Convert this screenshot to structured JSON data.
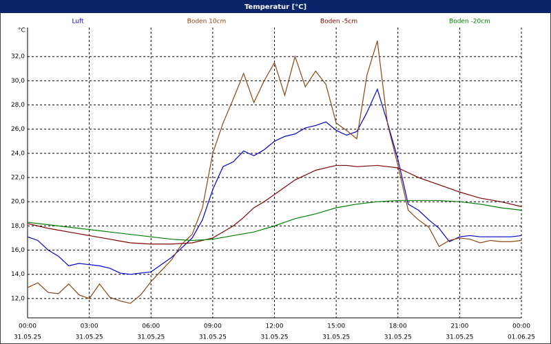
{
  "chart_data": {
    "type": "line",
    "title": "Temperatur [°C]",
    "y_unit": "°C",
    "x": [
      0,
      0.5,
      1,
      1.5,
      2,
      2.5,
      3,
      3.5,
      4,
      4.5,
      5,
      5.5,
      6,
      6.5,
      7,
      7.5,
      8,
      8.5,
      9,
      9.5,
      10,
      10.5,
      11,
      11.5,
      12,
      12.5,
      13,
      13.5,
      14,
      14.5,
      15,
      15.5,
      16,
      16.5,
      17,
      17.5,
      18,
      18.5,
      19,
      19.5,
      20,
      20.5,
      21,
      21.5,
      22,
      22.5,
      23,
      23.5,
      24
    ],
    "series": [
      {
        "name": "Luft",
        "color": "#0000cc",
        "values": [
          17.1,
          16.8,
          16.0,
          15.5,
          14.7,
          14.9,
          14.8,
          14.7,
          14.5,
          14.1,
          14.0,
          14.1,
          14.2,
          14.8,
          15.4,
          16.2,
          17.0,
          18.5,
          21.0,
          22.9,
          23.3,
          24.2,
          23.8,
          24.3,
          25.0,
          25.4,
          25.6,
          26.1,
          26.3,
          26.6,
          25.9,
          25.5,
          25.8,
          27.4,
          29.3,
          26.5,
          23.5,
          19.8,
          19.3,
          18.5,
          17.8,
          16.7,
          17.1,
          17.2,
          17.1,
          17.1,
          17.1,
          17.1,
          17.2
        ]
      },
      {
        "name": "Boden 10cm",
        "color": "#8b4513",
        "values": [
          12.9,
          13.3,
          12.5,
          12.4,
          13.2,
          12.3,
          12.0,
          13.2,
          12.1,
          11.8,
          11.6,
          12.3,
          13.4,
          14.3,
          15.2,
          16.5,
          17.3,
          19.5,
          24.0,
          26.5,
          28.5,
          30.6,
          28.2,
          30.0,
          31.5,
          28.8,
          32.0,
          29.5,
          30.8,
          29.7,
          26.5,
          25.9,
          25.2,
          30.5,
          33.3,
          26.4,
          23.0,
          19.3,
          18.5,
          17.9,
          16.3,
          16.8,
          17.0,
          16.9,
          16.6,
          16.8,
          16.7,
          16.7,
          16.8
        ]
      },
      {
        "name": "Boden -5cm",
        "color": "#800000",
        "values": [
          18.2,
          18.0,
          17.8,
          17.65,
          17.5,
          17.35,
          17.2,
          17.05,
          16.9,
          16.75,
          16.6,
          16.55,
          16.5,
          16.5,
          16.5,
          16.55,
          16.6,
          16.8,
          17.0,
          17.5,
          18.0,
          18.7,
          19.5,
          20.0,
          20.6,
          21.2,
          21.8,
          22.2,
          22.6,
          22.8,
          23.0,
          23.0,
          22.9,
          22.95,
          23.0,
          22.9,
          22.8,
          22.4,
          22.0,
          21.7,
          21.4,
          21.1,
          20.8,
          20.55,
          20.3,
          20.15,
          20.0,
          19.8,
          19.6
        ]
      },
      {
        "name": "Boden -20cm",
        "color": "#008000",
        "values": [
          18.3,
          18.2,
          18.1,
          18.0,
          17.9,
          17.8,
          17.7,
          17.6,
          17.5,
          17.4,
          17.3,
          17.2,
          17.1,
          17.0,
          16.9,
          16.85,
          16.8,
          16.85,
          16.9,
          17.05,
          17.2,
          17.35,
          17.5,
          17.75,
          18.0,
          18.3,
          18.6,
          18.8,
          19.0,
          19.25,
          19.5,
          19.65,
          19.8,
          19.9,
          20.0,
          20.05,
          20.1,
          20.1,
          20.1,
          20.1,
          20.1,
          20.05,
          20.0,
          19.9,
          19.8,
          19.65,
          19.5,
          19.4,
          19.3
        ]
      }
    ],
    "xlim": [
      0,
      24
    ],
    "xticks": [
      {
        "value": 0,
        "label": "00:00"
      },
      {
        "value": 3,
        "label": "03:00"
      },
      {
        "value": 6,
        "label": "06:00"
      },
      {
        "value": 9,
        "label": "09:00"
      },
      {
        "value": 12,
        "label": "12:00"
      },
      {
        "value": 15,
        "label": "15:00"
      },
      {
        "value": 18,
        "label": "18:00"
      },
      {
        "value": 21,
        "label": "21:00"
      },
      {
        "value": 24,
        "label": "00:00"
      }
    ],
    "xtick_dates": [
      "31.05.25",
      "31.05.25",
      "31.05.25",
      "31.05.25",
      "31.05.25",
      "31.05.25",
      "31.05.25",
      "31.05.25",
      "01.06.25"
    ],
    "ylim": [
      10.4,
      34.4
    ],
    "yticks": [
      {
        "value": 12,
        "label": "12,0"
      },
      {
        "value": 14,
        "label": "14,0"
      },
      {
        "value": 16,
        "label": "16,0"
      },
      {
        "value": 18,
        "label": "18,0"
      },
      {
        "value": 20,
        "label": "20,0"
      },
      {
        "value": 22,
        "label": "22,0"
      },
      {
        "value": 24,
        "label": "24,0"
      },
      {
        "value": 26,
        "label": "26,0"
      },
      {
        "value": 28,
        "label": "28,0"
      },
      {
        "value": 30,
        "label": "30,0"
      },
      {
        "value": 32,
        "label": "32,0"
      }
    ],
    "grid": true
  }
}
